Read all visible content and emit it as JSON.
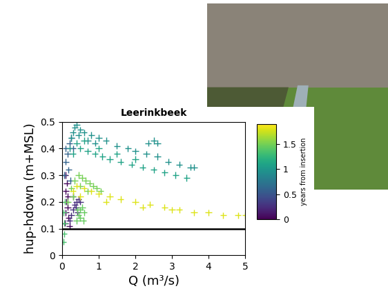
{
  "chart_data": {
    "type": "scatter",
    "title": "Leerinkbeek",
    "x_label": "Q (m³/s)",
    "y_label": "hup-hdown (m+MSL)",
    "marker": "plus",
    "xlim": [
      0,
      5
    ],
    "xticks": [
      0,
      1,
      2,
      3,
      4,
      5
    ],
    "ylim": [
      0,
      0.5
    ],
    "yticks": [
      0,
      0.1,
      0.2,
      0.3,
      0.4,
      0.5
    ],
    "reference_line": 0.1,
    "colorbar": {
      "label": "years from insertion",
      "lim": [
        0,
        1.9
      ],
      "ticks": [
        0,
        0.5,
        1,
        1.5
      ]
    },
    "series": [
      {
        "years": 0.05,
        "x": [
          0.08,
          0.1,
          0.12,
          0.1,
          0.15,
          0.18,
          0.2,
          0.13,
          0.09,
          0.16
        ],
        "y": [
          0.12,
          0.16,
          0.2,
          0.24,
          0.18,
          0.14,
          0.11,
          0.27,
          0.3,
          0.22
        ]
      },
      {
        "years": 0.25,
        "x": [
          0.2,
          0.25,
          0.3,
          0.35,
          0.4,
          0.45,
          0.5,
          0.3,
          0.38,
          0.42
        ],
        "y": [
          0.13,
          0.15,
          0.17,
          0.19,
          0.2,
          0.21,
          0.2,
          0.22,
          0.18,
          0.16
        ]
      },
      {
        "years": 0.6,
        "x": [
          0.05,
          0.1,
          0.15,
          0.2,
          0.25,
          0.1,
          0.18,
          0.22,
          0.3
        ],
        "y": [
          0.3,
          0.35,
          0.38,
          0.42,
          0.44,
          0.4,
          0.32,
          0.28,
          0.4
        ]
      },
      {
        "years": 0.95,
        "x": [
          0.2,
          0.3,
          0.35,
          0.4,
          0.5,
          0.6,
          0.8,
          1.0,
          1.2,
          1.5,
          1.8,
          2.0,
          2.3,
          2.6,
          2.9,
          3.2,
          3.5,
          0.25,
          0.45,
          0.7,
          0.9,
          2.35,
          2.5,
          2.6,
          3.6
        ],
        "y": [
          0.4,
          0.46,
          0.48,
          0.49,
          0.47,
          0.46,
          0.45,
          0.44,
          0.43,
          0.41,
          0.4,
          0.39,
          0.38,
          0.37,
          0.35,
          0.34,
          0.33,
          0.44,
          0.45,
          0.43,
          0.42,
          0.42,
          0.43,
          0.42,
          0.33
        ]
      },
      {
        "years": 1.1,
        "x": [
          0.3,
          0.5,
          0.7,
          0.9,
          1.1,
          1.3,
          1.6,
          1.9,
          2.2,
          2.5,
          2.8,
          3.1,
          3.4,
          0.4,
          0.6,
          1.0,
          1.5,
          2.0
        ],
        "y": [
          0.38,
          0.4,
          0.39,
          0.38,
          0.37,
          0.36,
          0.35,
          0.34,
          0.33,
          0.32,
          0.31,
          0.3,
          0.29,
          0.42,
          0.43,
          0.4,
          0.38,
          0.36
        ]
      },
      {
        "years": 1.35,
        "x": [
          0.03,
          0.05,
          0.06,
          0.04,
          0.08
        ],
        "y": [
          0.05,
          0.08,
          0.12,
          0.16,
          0.2
        ]
      },
      {
        "years": 1.5,
        "x": [
          0.15,
          0.25,
          0.35,
          0.45,
          0.55,
          0.65,
          0.75,
          0.85,
          0.95,
          1.05,
          0.3,
          0.5,
          0.7
        ],
        "y": [
          0.2,
          0.25,
          0.28,
          0.3,
          0.29,
          0.28,
          0.27,
          0.26,
          0.25,
          0.24,
          0.22,
          0.26,
          0.24
        ]
      },
      {
        "years": 1.45,
        "x": [
          0.4,
          0.45,
          0.5,
          0.55,
          0.6,
          0.42,
          0.5,
          0.58
        ],
        "y": [
          0.13,
          0.15,
          0.17,
          0.18,
          0.16,
          0.17,
          0.14,
          0.13
        ]
      },
      {
        "years": 1.8,
        "x": [
          0.3,
          0.4,
          0.6,
          0.8,
          1.0,
          1.3,
          1.6,
          2.0,
          2.4,
          2.8,
          3.2,
          3.6,
          4.0,
          4.4,
          4.8,
          5.0,
          0.5,
          1.2,
          2.2,
          3.0
        ],
        "y": [
          0.24,
          0.26,
          0.25,
          0.24,
          0.23,
          0.22,
          0.21,
          0.2,
          0.19,
          0.18,
          0.17,
          0.16,
          0.16,
          0.15,
          0.15,
          0.15,
          0.22,
          0.2,
          0.18,
          0.17
        ]
      }
    ]
  }
}
